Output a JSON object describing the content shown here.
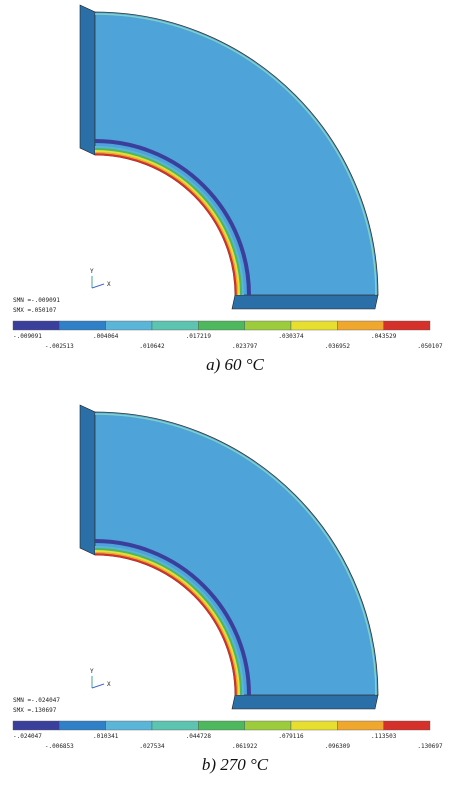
{
  "panels": [
    {
      "smn": "SMN =-.009091",
      "smx": "SMX =.050107",
      "legend_ticks": [
        "-.009091",
        "-.002513",
        ".004064",
        ".010642",
        ".017219",
        ".023797",
        ".030374",
        ".036952",
        ".043529",
        ".050107"
      ],
      "caption": "a) 60 °C",
      "axis_x": "X",
      "axis_y": "Y"
    },
    {
      "smn": "SMN =-.024047",
      "smx": "SMX =.130697",
      "legend_ticks": [
        "-.024047",
        "-.006853",
        ".010341",
        ".027534",
        ".044728",
        ".061922",
        ".079116",
        ".096309",
        ".113503",
        ".130697"
      ],
      "caption": "b) 270 °C",
      "axis_x": "X",
      "axis_y": "Y"
    }
  ],
  "legend_colors": [
    "#3b3f9c",
    "#2f80c6",
    "#5bb5d9",
    "#5cc4b0",
    "#4db85e",
    "#9ccb3c",
    "#e6df30",
    "#f0a72e",
    "#d6302b"
  ]
}
